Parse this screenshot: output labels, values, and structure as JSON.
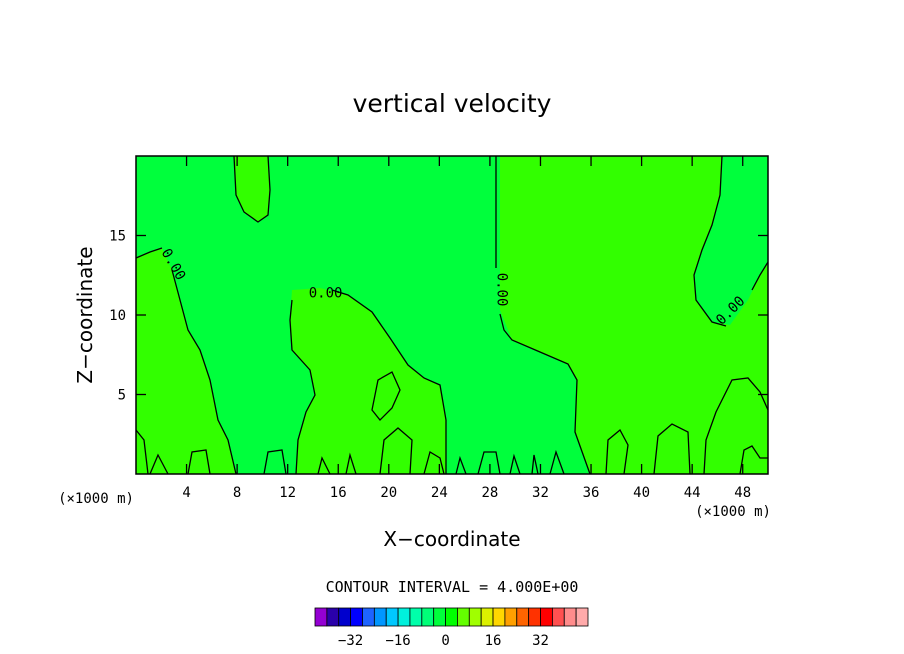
{
  "chart_data": {
    "type": "contour",
    "title": "vertical velocity",
    "xlabel": "X−coordinate",
    "ylabel": "Z−coordinate",
    "x_unit_label": "(×1000 m)",
    "y_unit_label": "(×1000 m)",
    "xlim": [
      0,
      50
    ],
    "ylim": [
      0,
      20
    ],
    "x_ticks": [
      4,
      8,
      12,
      16,
      20,
      24,
      28,
      32,
      36,
      40,
      44,
      48
    ],
    "y_ticks": [
      5,
      10,
      15
    ],
    "contour_interval_text": "CONTOUR INTERVAL = 4.000E+00",
    "contour_level_labels": [
      {
        "text": "0.00",
        "x": 3,
        "z": 13.2
      },
      {
        "text": "0.00",
        "x": 15,
        "z": 11.4
      },
      {
        "text": "0.00",
        "x": 29,
        "z": 11.6
      },
      {
        "text": "0.00",
        "x": 47,
        "z": 10.3
      }
    ],
    "colorbar": {
      "colors": [
        "#9400d3",
        "#2a00aa",
        "#0000cd",
        "#0000ff",
        "#1e64ff",
        "#0096ff",
        "#00c8ff",
        "#00f0dc",
        "#00ffaa",
        "#00ff78",
        "#00ff3c",
        "#00ff00",
        "#64ff00",
        "#a0ff00",
        "#dcf000",
        "#ffd700",
        "#ffa000",
        "#ff6400",
        "#ff3200",
        "#ff0000",
        "#ff5050",
        "#ff8c8c",
        "#ffaaaa"
      ],
      "tick_labels": [
        "−32",
        "−16",
        "0",
        "16",
        "32"
      ],
      "tick_values": [
        -32,
        -16,
        0,
        16,
        32
      ],
      "range": [
        -44,
        48
      ]
    },
    "fill_colors": {
      "near_zero_positive": "#00ff3c",
      "slightly_positive": "#32ff00"
    }
  }
}
